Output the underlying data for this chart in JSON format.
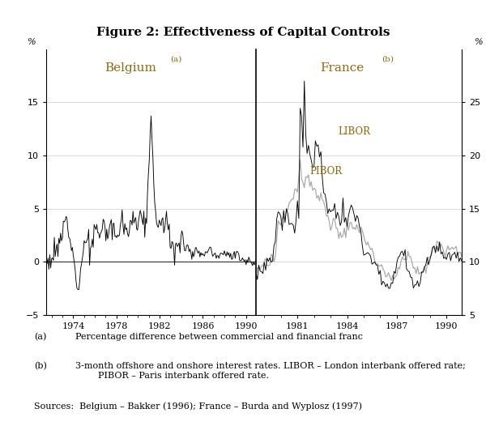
{
  "title": "Figure 2: Effectiveness of Capital Controls",
  "title_fontsize": 11,
  "background_color": "#ffffff",
  "label_color": "#8B6914",
  "footnote_a_label": "(a)",
  "footnote_a_text": "Percentage difference between commercial and financial franc",
  "footnote_b_label": "(b)",
  "footnote_b_text": "3-month offshore and onshore interest rates. LIBOR – London interbank offered rate;\n        PIBOR – Paris interbank offered rate.",
  "footnote_sources": "Sources:  Belgium – Bakker (1996); France – Burda and Wyplosz (1997)",
  "belgium_label": "Belgium",
  "belgium_sup": "(a)",
  "france_label": "France",
  "france_sup": "(b)",
  "left_ylabel": "%",
  "right_ylabel": "%",
  "left_ylim": [
    -5,
    20
  ],
  "right_ylim": [
    5,
    30
  ],
  "left_yticks": [
    -5,
    0,
    5,
    10,
    15
  ],
  "right_yticks": [
    5,
    10,
    15,
    20,
    25
  ],
  "bel_xticks": [
    1974,
    1978,
    1982,
    1986,
    1990
  ],
  "fra_xticks": [
    1981,
    1984,
    1987,
    1990
  ],
  "libor_label": "LIBOR",
  "pibor_label": "PIBOR",
  "grid_color": "#cccccc"
}
